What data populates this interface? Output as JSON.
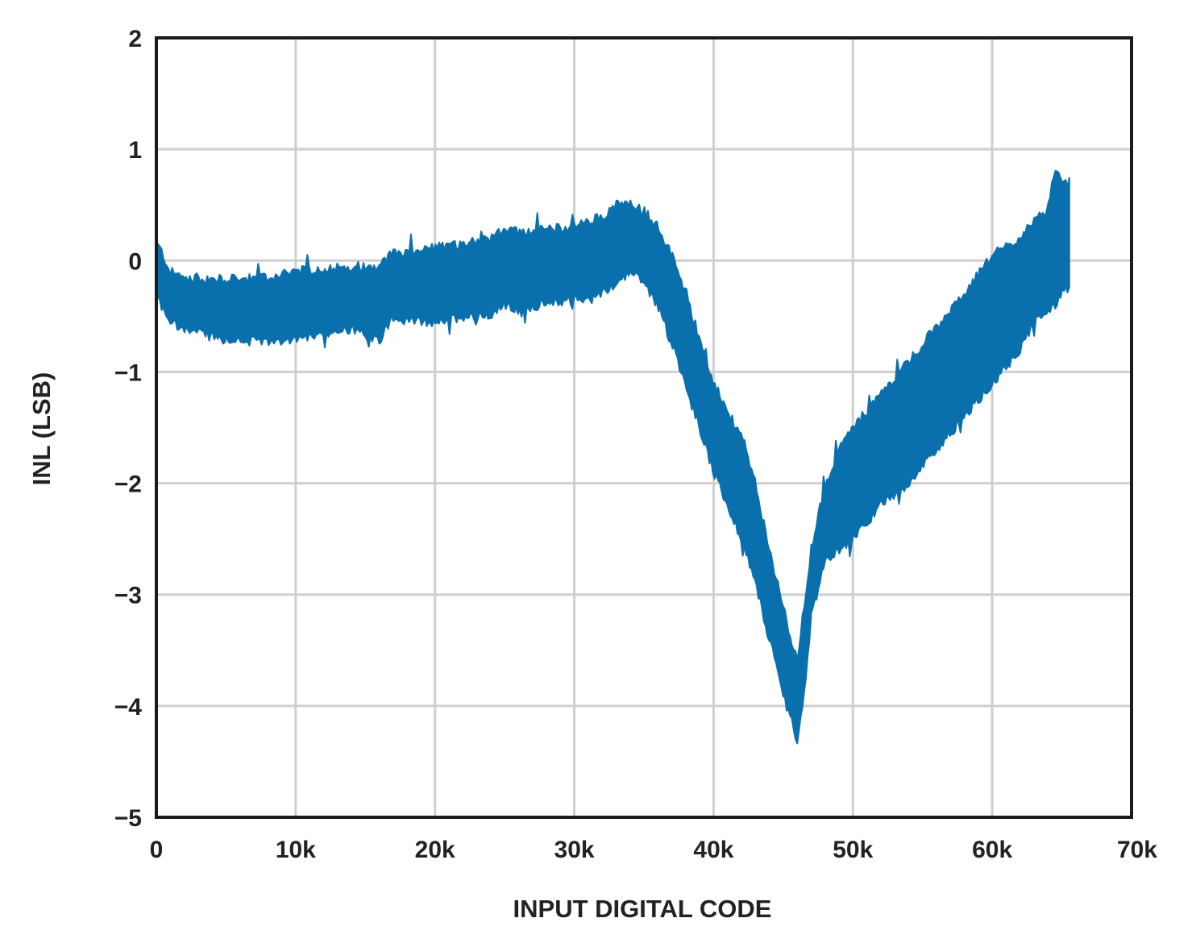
{
  "chart_data": {
    "type": "area",
    "title": "",
    "xlabel": "INPUT DIGITAL CODE",
    "ylabel": "INL (LSB)",
    "xlim": [
      0,
      70000
    ],
    "ylim": [
      -5,
      2
    ],
    "x_ticks": [
      0,
      10000,
      20000,
      30000,
      40000,
      50000,
      60000,
      70000
    ],
    "x_tick_labels": [
      "0",
      "10k",
      "20k",
      "30k",
      "40k",
      "50k",
      "60k",
      "70k"
    ],
    "y_ticks": [
      2,
      1,
      0,
      -1,
      -2,
      -3,
      -4,
      -5
    ],
    "y_tick_labels": [
      "2",
      "1",
      "0",
      "−1",
      "−2",
      "−3",
      "−4",
      "−5"
    ],
    "grid": true,
    "legend": "none",
    "series_color": "#0a70ad",
    "series": [
      {
        "x": [
          0,
          300,
          1000,
          2000,
          4000,
          6000,
          8000,
          10000,
          12000,
          14000,
          16000,
          17000,
          18000,
          20000,
          22000,
          24000,
          25000,
          26000,
          28000,
          30000,
          31000,
          32000,
          33000,
          34000,
          35000,
          36000,
          37000,
          38000,
          39000,
          40000,
          41000,
          42000,
          43000,
          44000,
          45000,
          45500,
          46000,
          46500,
          47000,
          48000,
          49000,
          50000,
          52000,
          54000,
          56000,
          58000,
          60000,
          62000,
          63000,
          64000,
          64500,
          65000,
          65535
        ],
        "upper": [
          0.15,
          0.1,
          -0.1,
          -0.15,
          -0.17,
          -0.17,
          -0.15,
          -0.1,
          -0.07,
          -0.05,
          -0.05,
          0.08,
          0.05,
          0.12,
          0.15,
          0.2,
          0.3,
          0.25,
          0.28,
          0.3,
          0.35,
          0.4,
          0.5,
          0.5,
          0.45,
          0.3,
          0.05,
          -0.3,
          -0.7,
          -1.1,
          -1.35,
          -1.6,
          -2.0,
          -2.6,
          -3.1,
          -3.4,
          -3.6,
          -3.1,
          -2.6,
          -2.0,
          -1.7,
          -1.5,
          -1.2,
          -0.9,
          -0.6,
          -0.3,
          0.05,
          0.2,
          0.35,
          0.45,
          0.8,
          0.7,
          0.7
        ],
        "lower": [
          -0.3,
          -0.4,
          -0.55,
          -0.62,
          -0.68,
          -0.72,
          -0.73,
          -0.7,
          -0.65,
          -0.62,
          -0.72,
          -0.5,
          -0.55,
          -0.55,
          -0.5,
          -0.48,
          -0.4,
          -0.45,
          -0.38,
          -0.35,
          -0.35,
          -0.3,
          -0.2,
          -0.1,
          -0.2,
          -0.4,
          -0.75,
          -1.1,
          -1.5,
          -1.9,
          -2.2,
          -2.5,
          -2.9,
          -3.4,
          -3.9,
          -4.1,
          -4.3,
          -3.9,
          -3.2,
          -2.7,
          -2.6,
          -2.5,
          -2.2,
          -2.0,
          -1.7,
          -1.4,
          -1.1,
          -0.8,
          -0.55,
          -0.45,
          -0.4,
          -0.3,
          -0.25
        ]
      }
    ]
  }
}
